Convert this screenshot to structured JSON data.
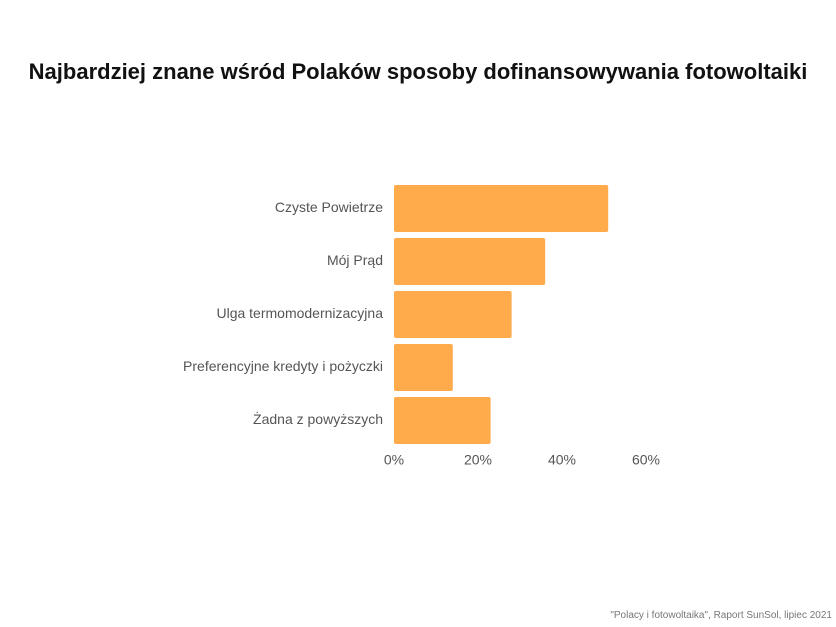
{
  "chart_data": {
    "type": "barh",
    "title": "Najbardziej znane wśród Polaków sposoby dofinansowywania fotowoltaiki",
    "categories": [
      "Czyste Powietrze",
      "Mój Prąd",
      "Ulga termomodernizacyjna",
      "Preferencyjne kredyty i pożyczki",
      "Żadna z powyższych"
    ],
    "values": [
      51,
      36,
      28,
      14,
      23
    ],
    "color": "#ffab4c",
    "xlim": [
      0,
      60
    ],
    "xticks": [
      {
        "value": 0,
        "label": "0%"
      },
      {
        "value": 20,
        "label": "20%"
      },
      {
        "value": 40,
        "label": "40%"
      },
      {
        "value": 60,
        "label": "60%"
      }
    ],
    "source": "\"Polacy i fotowoltaika\", Raport SunSol, lipiec 2021"
  }
}
